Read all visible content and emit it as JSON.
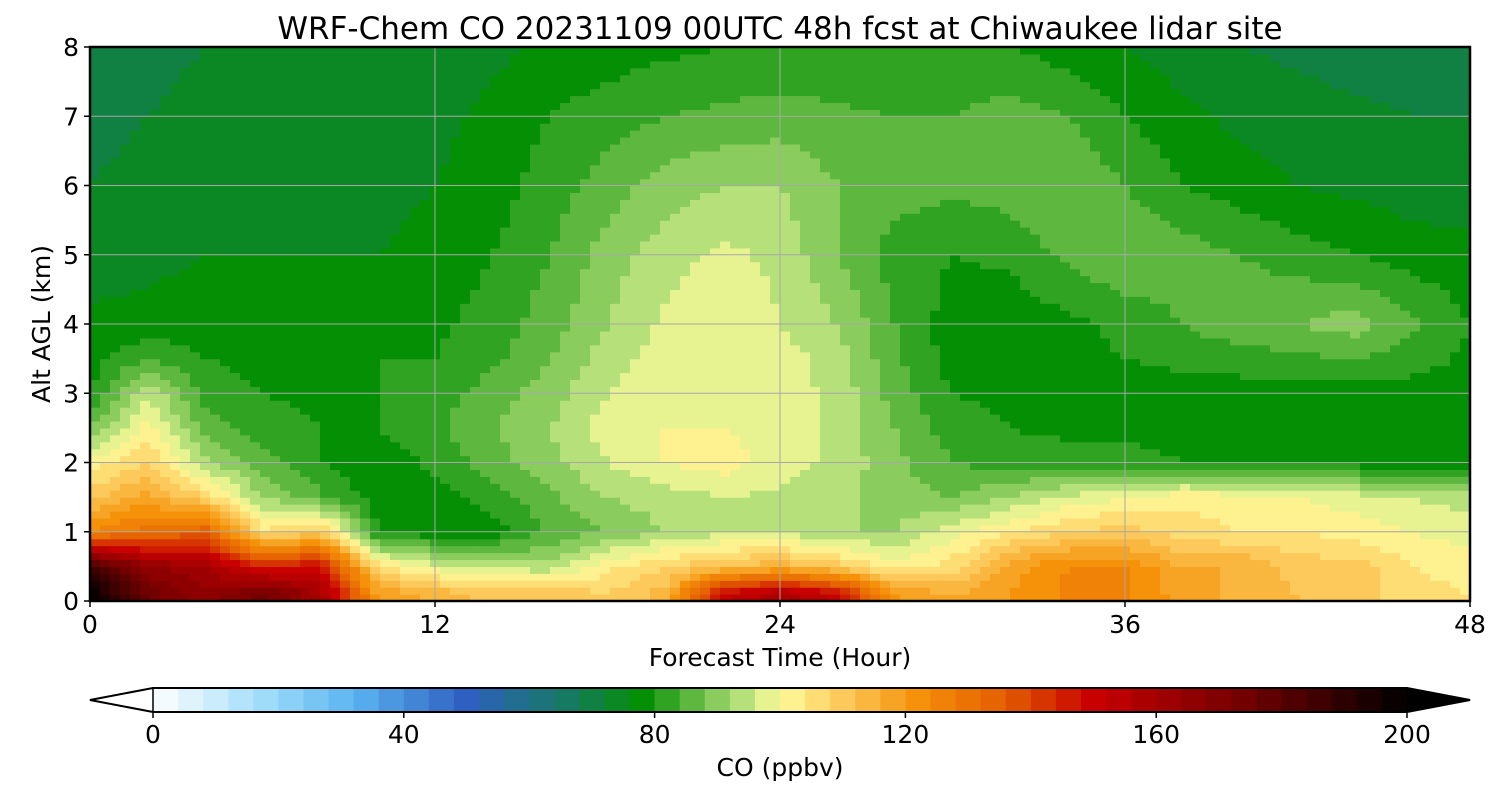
{
  "chart_data": {
    "type": "heatmap",
    "title": "WRF-Chem CO  20231109 00UTC 48h fcst at Chiwaukee lidar site",
    "xlabel": "Forecast Time (Hour)",
    "ylabel": "Alt AGL (km)",
    "xlim": [
      0,
      48
    ],
    "ylim": [
      0,
      8
    ],
    "xticks": [
      0,
      12,
      24,
      36,
      48
    ],
    "yticks": [
      0,
      1,
      2,
      3,
      4,
      5,
      6,
      7,
      8
    ],
    "grid": true,
    "x": [
      0,
      2,
      4,
      6,
      8,
      10,
      12,
      14,
      16,
      18,
      20,
      22,
      24,
      26,
      28,
      30,
      32,
      34,
      36,
      38,
      40,
      42,
      44,
      46,
      48
    ],
    "y": [
      0.1,
      0.5,
      1.0,
      1.5,
      2.0,
      2.5,
      3.0,
      3.5,
      4.0,
      5.0,
      6.0,
      7.0,
      8.0
    ],
    "values": [
      [
        200,
        175,
        165,
        175,
        160,
        120,
        115,
        110,
        112,
        108,
        114,
        150,
        160,
        150,
        120,
        116,
        120,
        125,
        125,
        118,
        115,
        112,
        110,
        106,
        104
      ],
      [
        185,
        165,
        160,
        145,
        150,
        105,
        98,
        95,
        93,
        103,
        108,
        112,
        115,
        110,
        102,
        106,
        118,
        124,
        124,
        116,
        116,
        110,
        110,
        104,
        102
      ],
      [
        125,
        130,
        135,
        105,
        110,
        80,
        77,
        78,
        85,
        88,
        92,
        95,
        95,
        92,
        92,
        98,
        104,
        108,
        110,
        106,
        104,
        104,
        102,
        100,
        98
      ],
      [
        110,
        118,
        108,
        92,
        85,
        78,
        78,
        82,
        87,
        92,
        94,
        96,
        95,
        93,
        90,
        88,
        92,
        97,
        100,
        103,
        102,
        100,
        98,
        96,
        94
      ],
      [
        102,
        108,
        93,
        86,
        80,
        77,
        81,
        86,
        91,
        96,
        100,
        102,
        98,
        95,
        89,
        84,
        82,
        82,
        82,
        80,
        78,
        78,
        78,
        78,
        78
      ],
      [
        88,
        102,
        86,
        82,
        80,
        80,
        83,
        88,
        92,
        98,
        100,
        100,
        98,
        95,
        88,
        82,
        80,
        79,
        79,
        78,
        78,
        78,
        78,
        78,
        78
      ],
      [
        80,
        96,
        82,
        80,
        79,
        80,
        82,
        86,
        90,
        96,
        99,
        100,
        98,
        95,
        86,
        80,
        79,
        78,
        78,
        78,
        78,
        78,
        78,
        78,
        78
      ],
      [
        78,
        84,
        80,
        79,
        79,
        80,
        80,
        83,
        88,
        94,
        98,
        100,
        98,
        94,
        85,
        78,
        78,
        79,
        80,
        81,
        82,
        83,
        84,
        82,
        79
      ],
      [
        77,
        77,
        78,
        78,
        78,
        78,
        79,
        82,
        86,
        92,
        97,
        100,
        96,
        92,
        84,
        78,
        77,
        79,
        81,
        84,
        87,
        88,
        90,
        85,
        80
      ],
      [
        74,
        75,
        76,
        76,
        76,
        76,
        77,
        80,
        84,
        90,
        94,
        97,
        95,
        88,
        82,
        80,
        81,
        85,
        88,
        86,
        84,
        82,
        80,
        78,
        77
      ],
      [
        72,
        73,
        74,
        75,
        75,
        75,
        76,
        78,
        82,
        86,
        90,
        92,
        92,
        88,
        86,
        85,
        86,
        88,
        84,
        80,
        78,
        76,
        75,
        74,
        74
      ],
      [
        71,
        72,
        73,
        74,
        74,
        74,
        75,
        77,
        80,
        82,
        84,
        85,
        86,
        85,
        84,
        84,
        86,
        84,
        80,
        77,
        75,
        74,
        73,
        72,
        72
      ],
      [
        70,
        71,
        72,
        72,
        73,
        73,
        74,
        75,
        77,
        78,
        79,
        80,
        80,
        80,
        80,
        80,
        80,
        78,
        76,
        74,
        72,
        71,
        70,
        70,
        70
      ]
    ],
    "colorbar": {
      "label": "CO  (ppbv)",
      "min": 0,
      "max": 200,
      "ticks": [
        0,
        40,
        80,
        120,
        160,
        200
      ],
      "extend": "both",
      "orientation": "horizontal",
      "colorscale": [
        {
          "v": 0,
          "color": "#ffffff"
        },
        {
          "v": 18,
          "color": "#9fdcfa"
        },
        {
          "v": 32,
          "color": "#5ab4f0"
        },
        {
          "v": 50,
          "color": "#2f5fc0"
        },
        {
          "v": 66,
          "color": "#167a62"
        },
        {
          "v": 78,
          "color": "#058f05"
        },
        {
          "v": 94,
          "color": "#b6e07a"
        },
        {
          "v": 100,
          "color": "#fffb9c"
        },
        {
          "v": 110,
          "color": "#fcc95a"
        },
        {
          "v": 122,
          "color": "#f5920a"
        },
        {
          "v": 136,
          "color": "#e35c00"
        },
        {
          "v": 150,
          "color": "#c80000"
        },
        {
          "v": 175,
          "color": "#6e0000"
        },
        {
          "v": 200,
          "color": "#000000"
        }
      ]
    }
  }
}
